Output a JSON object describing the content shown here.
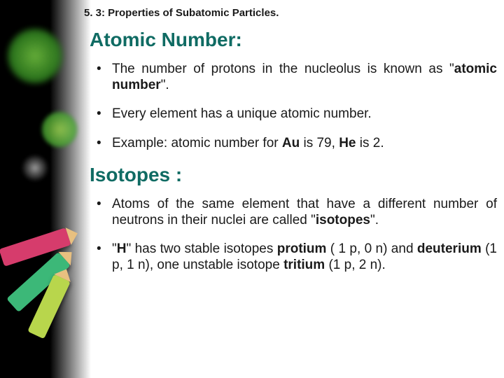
{
  "chapter_label": "5. 3: Properties of Subatomic Particles.",
  "section1": {
    "heading": "Atomic Number:",
    "bullet1_pre": "The number of protons in the nucleolus is  known as \"",
    "bullet1_bold": "atomic number",
    "bullet1_post": "\".",
    "bullet2": "Every element has a unique atomic number.",
    "bullet3_pre": "Example: atomic number for ",
    "bullet3_au": "Au",
    "bullet3_mid": " is 79,  ",
    "bullet3_he": "He",
    "bullet3_post": " is 2."
  },
  "section2": {
    "heading": "Isotopes :",
    "bullet1_pre": "Atoms of the same element that have a different number of neutrons in their nuclei are called \"",
    "bullet1_bold": "isotopes",
    "bullet1_post": "\".",
    "bullet2_a": "\"",
    "bullet2_h": "H",
    "bullet2_b": "\" has two stable isotopes ",
    "bullet2_pro": "protium",
    "bullet2_c": " ( 1 p, 0 n) and ",
    "bullet2_deu": "deuterium",
    "bullet2_d": " (1 p, 1 n), one unstable isotope ",
    "bullet2_tri": "tritium",
    "bullet2_e": " (1 p, 2 n)."
  },
  "colors": {
    "heading": "#0f6b63",
    "text": "#1a1a1a",
    "bg": "#ffffff"
  }
}
